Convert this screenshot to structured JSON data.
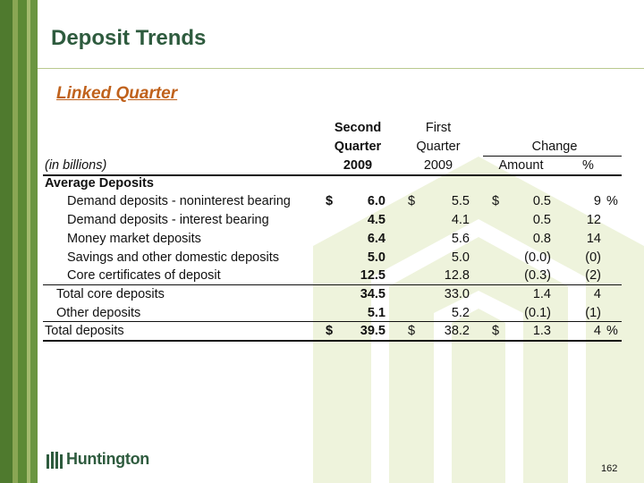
{
  "slide": {
    "title": "Deposit Trends",
    "subtitle": "Linked Quarter",
    "page_number": "162",
    "logo_text": "Huntington"
  },
  "colors": {
    "title": "#2e5b3e",
    "subtitle": "#c0621c",
    "stripe_dark": "#4f7a2e",
    "stripe_light": "#8aa654",
    "watermark": "#eef3dc"
  },
  "table": {
    "units_label": "(in billions)",
    "headers": {
      "col1_line1": "Second",
      "col1_line2": "Quarter",
      "col1_line3": "2009",
      "col2_line1": "First",
      "col2_line2": "Quarter",
      "col2_line3": "2009",
      "change": "Change",
      "amount": "Amount",
      "pct": "%"
    },
    "section_label": "Average Deposits",
    "rows": [
      {
        "label": "Demand deposits - noninterest bearing",
        "q2_prefix": "$",
        "q2": "6.0",
        "q1_prefix": "$",
        "q1": "5.5",
        "amt_prefix": "$",
        "amount": "0.5",
        "pct": "9",
        "pct_suffix": "%"
      },
      {
        "label": "Demand deposits - interest bearing",
        "q2": "4.5",
        "q1": "4.1",
        "amount": "0.5",
        "pct": "12"
      },
      {
        "label": "Money market deposits",
        "q2": "6.4",
        "q1": "5.6",
        "amount": "0.8",
        "pct": "14"
      },
      {
        "label": "Savings and other domestic deposits",
        "q2": "5.0",
        "q1": "5.0",
        "amount": "(0.0)",
        "pct": "(0)"
      },
      {
        "label": "Core certificates of deposit",
        "q2": "12.5",
        "q1": "12.8",
        "amount": "(0.3)",
        "pct": "(2)"
      },
      {
        "label": "Total core deposits",
        "q2": "34.5",
        "q1": "33.0",
        "amount": "1.4",
        "pct": "4"
      },
      {
        "label": "Other deposits",
        "q2": "5.1",
        "q1": "5.2",
        "amount": "(0.1)",
        "pct": "(1)"
      },
      {
        "label": "Total deposits",
        "q2_prefix": "$",
        "q2": "39.5",
        "q1_prefix": "$",
        "q1": "38.2",
        "amt_prefix": "$",
        "amount": "1.3",
        "pct": "4",
        "pct_suffix": "%"
      }
    ]
  }
}
